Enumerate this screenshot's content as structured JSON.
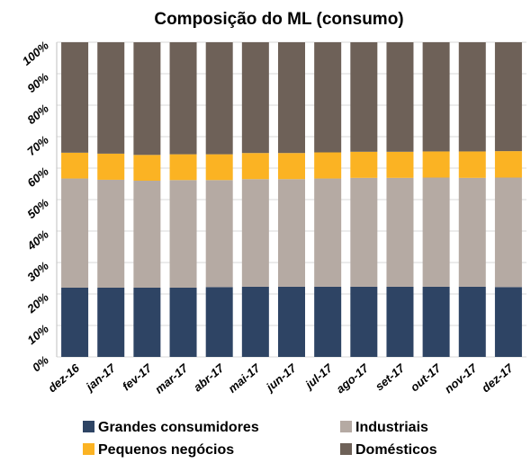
{
  "chart_data": {
    "type": "stacked_bar",
    "title": "Composição do ML (consumo)",
    "categories": [
      "dez-16",
      "jan-17",
      "fev-17",
      "mar-17",
      "abr-17",
      "mai-17",
      "jun-17",
      "jul-17",
      "ago-17",
      "set-17",
      "out-17",
      "nov-17",
      "dez-17"
    ],
    "series": [
      {
        "name": "Grandes consumidores",
        "color": "#2e4464",
        "values": [
          22.0,
          22.0,
          22.0,
          22.0,
          22.2,
          22.3,
          22.3,
          22.3,
          22.3,
          22.3,
          22.3,
          22.3,
          22.2
        ]
      },
      {
        "name": "Industriais",
        "color": "#b5aaa3",
        "values": [
          34.7,
          34.3,
          34.0,
          34.2,
          34.0,
          34.2,
          34.2,
          34.4,
          34.6,
          34.6,
          34.7,
          34.6,
          34.8
        ]
      },
      {
        "name": "Pequenos negócios",
        "color": "#fbb323",
        "values": [
          8.2,
          8.3,
          8.2,
          8.2,
          8.2,
          8.3,
          8.3,
          8.3,
          8.3,
          8.3,
          8.3,
          8.4,
          8.4
        ]
      },
      {
        "name": "Domésticos",
        "color": "#6e6158",
        "values": [
          35.1,
          35.4,
          35.8,
          35.6,
          35.6,
          35.2,
          35.2,
          35.0,
          34.8,
          34.8,
          34.7,
          34.7,
          34.6
        ]
      }
    ],
    "ylim": [
      0,
      100
    ],
    "yticks": [
      {
        "value": 0,
        "label": "0%"
      },
      {
        "value": 10,
        "label": "10%"
      },
      {
        "value": 20,
        "label": "20%"
      },
      {
        "value": 30,
        "label": "30%"
      },
      {
        "value": 40,
        "label": "40%"
      },
      {
        "value": 50,
        "label": "50%"
      },
      {
        "value": 60,
        "label": "60%"
      },
      {
        "value": 70,
        "label": "70%"
      },
      {
        "value": 80,
        "label": "80%"
      },
      {
        "value": 90,
        "label": "90%"
      },
      {
        "value": 100,
        "label": "100%"
      }
    ],
    "grid": true
  }
}
